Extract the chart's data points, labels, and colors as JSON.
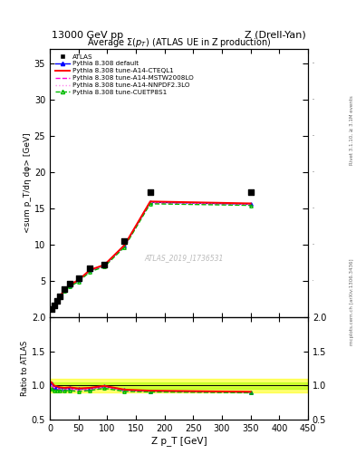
{
  "title_top_left": "13000 GeV pp",
  "title_top_right": "Z (Drell-Yan)",
  "plot_title": "Average Σ(p_T) (ATLAS UE in Z production)",
  "xlabel": "Z p_T [GeV]",
  "ylabel_main": "<sum p_T/dη dφ> [GeV]",
  "ylabel_ratio": "Ratio to ATLAS",
  "right_label_top": "Rivet 3.1.10, ≥ 3.1M events",
  "right_label_bottom": "mcplots.cern.ch [arXiv:1306.3436]",
  "watermark": "ATLAS_2019_I1736531",
  "xlim": [
    0,
    450
  ],
  "ylim_main": [
    0,
    37
  ],
  "ylim_ratio": [
    0.5,
    2.0
  ],
  "yticks_main": [
    5,
    10,
    15,
    20,
    25,
    30,
    35
  ],
  "yticks_ratio": [
    0.5,
    1.0,
    1.5,
    2.0
  ],
  "atlas_x": [
    2.5,
    7.5,
    12.5,
    17.5,
    25,
    35,
    50,
    70,
    95,
    130,
    175,
    350
  ],
  "atlas_y": [
    1.05,
    1.55,
    2.2,
    2.85,
    3.85,
    4.55,
    5.3,
    6.7,
    7.2,
    10.5,
    17.2,
    17.2
  ],
  "mc_x": [
    2.5,
    7.5,
    12.5,
    17.5,
    25,
    35,
    50,
    70,
    95,
    130,
    175,
    350
  ],
  "mc_y_default": [
    1.08,
    1.52,
    2.13,
    2.73,
    3.68,
    4.38,
    5.03,
    6.42,
    7.1,
    9.8,
    15.82,
    15.55
  ],
  "mc_y_cteql1": [
    1.1,
    1.55,
    2.17,
    2.78,
    3.72,
    4.43,
    5.08,
    6.48,
    7.17,
    9.88,
    15.92,
    15.65
  ],
  "mc_y_mstw": [
    1.05,
    1.5,
    2.1,
    2.7,
    3.62,
    4.32,
    4.93,
    6.33,
    7.02,
    9.72,
    15.73,
    15.48
  ],
  "mc_y_nnpdf": [
    1.06,
    1.51,
    2.11,
    2.71,
    3.63,
    4.33,
    4.94,
    6.34,
    7.03,
    9.73,
    15.74,
    15.5
  ],
  "mc_y_cuetp": [
    1.0,
    1.44,
    2.04,
    2.64,
    3.55,
    4.22,
    4.84,
    6.22,
    6.91,
    9.61,
    15.6,
    15.38
  ],
  "color_default": "#0000ff",
  "color_cteql1": "#ff0000",
  "color_mstw": "#ff00dd",
  "color_nnpdf": "#ff88ee",
  "color_cuetp": "#00bb00",
  "band_yellow": "#ffff00",
  "band_green": "#aaff00",
  "band_alpha": 0.55,
  "legend_entries": [
    "ATLAS",
    "Pythia 8.308 default",
    "Pythia 8.308 tune-A14-CTEQL1",
    "Pythia 8.308 tune-A14-MSTW2008LO",
    "Pythia 8.308 tune-A14-NNPDF2.3LO",
    "Pythia 8.308 tune-CUETP8S1"
  ]
}
